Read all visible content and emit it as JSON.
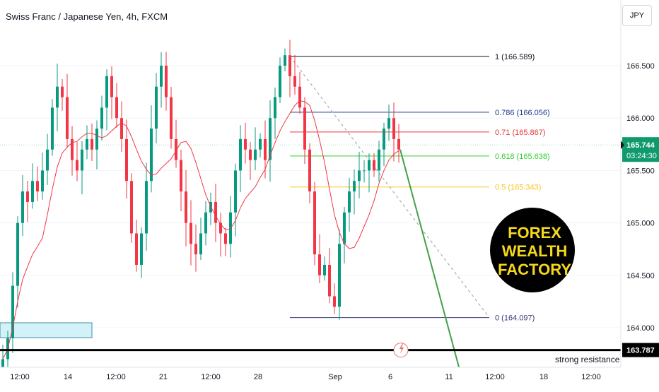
{
  "header": {
    "title": "Swiss Franc / Japanese Yen, 4h, FXCM",
    "currency_button": "JPY"
  },
  "colors": {
    "up": "#089981",
    "down": "#f23645",
    "ma": "#f23645",
    "fib_1": "#131722",
    "fib_0786": "#1a3a8a",
    "fib_071": "#e53935",
    "fib_0618": "#32cd32",
    "fib_05": "#f5c518",
    "fib_0": "#3b3b7a",
    "projection": "#43a047",
    "trendline": "#9e9e9e",
    "current_price": "#0f9a6e",
    "resistance": "#000000",
    "zone": "#d3f2f7",
    "zone_border": "#3a8fa8",
    "badge_bg": "#000000",
    "badge_text": "#f5d81c"
  },
  "price_axis": {
    "ticks": [
      "166.500",
      "166.000",
      "165.500",
      "165.000",
      "164.500",
      "164.000"
    ],
    "current_price": "165.744",
    "countdown": "03:24:30",
    "resistance_price": "163.787"
  },
  "time_axis": {
    "labels": [
      "12:00",
      "14",
      "12:00",
      "21",
      "12:00",
      "28",
      "Sep",
      "6",
      "11",
      "12:00",
      "18",
      "12:00"
    ]
  },
  "fib_levels": [
    {
      "label": "1 (166.589)",
      "price": 166.589,
      "color_key": "fib_1"
    },
    {
      "label": "0.786 (166.056)",
      "price": 166.056,
      "color_key": "fib_0786"
    },
    {
      "label": "0.71 (165.867)",
      "price": 165.867,
      "color_key": "fib_071"
    },
    {
      "label": "0.618 (165.638)",
      "price": 165.638,
      "color_key": "fib_0618"
    },
    {
      "label": "0.5 (165.343)",
      "price": 165.343,
      "color_key": "fib_05"
    },
    {
      "label": "0 (164.097)",
      "price": 164.097,
      "color_key": "fib_0"
    }
  ],
  "annotations": {
    "resistance_label": "strong resistance"
  },
  "badge": {
    "line1": "FOREX",
    "line2": "WEALTH",
    "line3": "FACTORY"
  },
  "chart_data": {
    "type": "candlestick",
    "title": "Swiss Franc / Japanese Yen, 4h, FXCM",
    "ylim": [
      163.6,
      167.2
    ],
    "close_path": [
      163.5,
      163.7,
      163.9,
      164.4,
      165.0,
      165.3,
      165.2,
      165.4,
      165.3,
      165.5,
      165.7,
      166.1,
      166.3,
      166.2,
      165.8,
      165.6,
      165.5,
      165.7,
      165.8,
      165.7,
      165.9,
      166.1,
      166.4,
      166.2,
      166.0,
      165.8,
      165.4,
      164.9,
      164.6,
      164.9,
      165.4,
      165.9,
      166.3,
      166.5,
      166.2,
      165.8,
      165.6,
      165.3,
      165.0,
      164.8,
      164.7,
      164.9,
      165.1,
      165.2,
      165.0,
      164.9,
      164.8,
      165.1,
      165.5,
      165.8,
      165.7,
      165.6,
      165.7,
      165.8,
      165.6,
      166.0,
      166.2,
      166.5,
      166.6,
      166.4,
      166.3,
      166.1,
      165.7,
      165.3,
      164.7,
      164.5,
      164.6,
      164.3,
      164.2,
      164.8,
      165.1,
      165.3,
      165.4,
      165.5,
      165.5,
      165.6,
      165.5,
      165.7,
      165.9,
      166.0,
      165.8,
      165.7
    ],
    "ma_period": 9,
    "projection": {
      "from_price": 165.7,
      "to_price": 163.55
    }
  }
}
